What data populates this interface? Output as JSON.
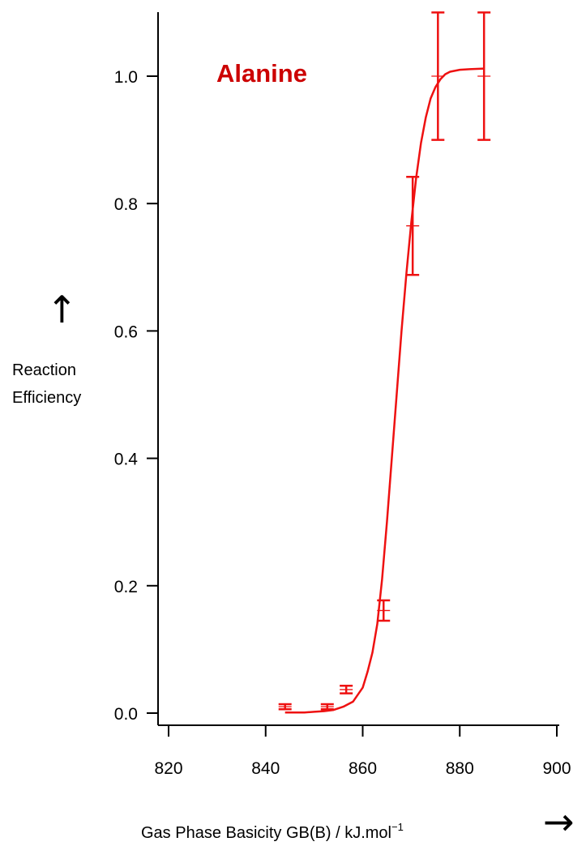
{
  "chart_data": {
    "type": "scatter",
    "title": "Alanine",
    "xlabel": "Gas Phase Basicity GB(B) / kJ.mol",
    "xlabel_superscript": "−1",
    "ylabel_lines": [
      "Reaction",
      "Efficiency"
    ],
    "x_arrow": "→",
    "y_arrow": "↑",
    "xlim": [
      817,
      900
    ],
    "ylim": [
      -0.01,
      1.1
    ],
    "x_ticks": [
      820,
      840,
      860,
      880,
      900
    ],
    "x_tick_labels": [
      "820",
      "840",
      "860",
      "880",
      "900"
    ],
    "y_ticks": [
      0.0,
      0.2,
      0.4,
      0.6,
      0.8,
      1.0
    ],
    "y_tick_labels": [
      "0.0",
      "0.2",
      "0.4",
      "0.6",
      "0.8",
      "1.0"
    ],
    "grid": false,
    "color": "#ee1111",
    "title_color": "#cc0000",
    "points": [
      {
        "x": 844,
        "y": 0.01,
        "err": 0.004
      },
      {
        "x": 852.7,
        "y": 0.01,
        "err": 0.004
      },
      {
        "x": 856.6,
        "y": 0.037,
        "err": 0.006
      },
      {
        "x": 864.3,
        "y": 0.161,
        "err": 0.016
      },
      {
        "x": 870.3,
        "y": 0.765,
        "err": 0.077
      },
      {
        "x": 875.5,
        "y": 1.0,
        "err": 0.1
      },
      {
        "x": 885,
        "y": 1.0,
        "err": 0.1
      }
    ],
    "fit_curve": {
      "x": [
        844,
        846,
        848,
        850,
        852,
        854,
        856,
        858,
        860,
        861,
        862,
        863,
        864,
        865,
        866,
        867,
        868,
        869,
        870,
        871,
        872,
        873,
        874,
        875,
        876,
        877,
        878,
        880,
        882,
        885
      ],
      "y": [
        0.001,
        0.001,
        0.001,
        0.002,
        0.003,
        0.005,
        0.01,
        0.018,
        0.04,
        0.065,
        0.095,
        0.14,
        0.21,
        0.3,
        0.4,
        0.5,
        0.6,
        0.69,
        0.77,
        0.84,
        0.895,
        0.935,
        0.965,
        0.983,
        0.995,
        1.003,
        1.007,
        1.01,
        1.011,
        1.012
      ]
    }
  }
}
